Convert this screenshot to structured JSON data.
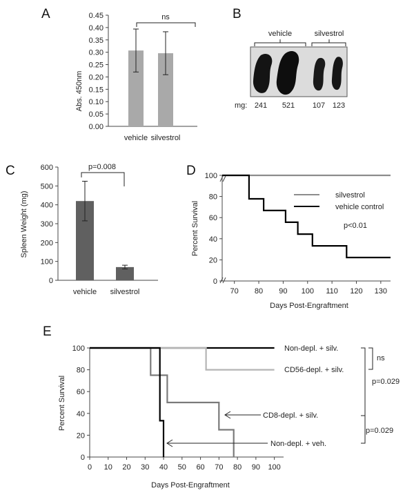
{
  "panels": {
    "A": {
      "letter": "A"
    },
    "B": {
      "letter": "B"
    },
    "C": {
      "letter": "C"
    },
    "D": {
      "letter": "D"
    },
    "E": {
      "letter": "E"
    }
  },
  "chart_data": [
    {
      "id": "A",
      "type": "bar",
      "categories": [
        "vehicle",
        "silvestrol"
      ],
      "values": [
        0.307,
        0.296
      ],
      "errors": [
        0.087,
        0.087
      ],
      "ylabel": "Abs. 450nm",
      "xlabel": "",
      "ylim": [
        0,
        0.45
      ],
      "yticks": [
        "0.00",
        "0.05",
        "0.10",
        "0.15",
        "0.20",
        "0.25",
        "0.30",
        "0.35",
        "0.40",
        "0.45"
      ],
      "bar_color": "#a9a9a9",
      "annotation": "ns"
    },
    {
      "id": "C",
      "type": "bar",
      "categories": [
        "vehicle",
        "silvestrol"
      ],
      "values": [
        420,
        70
      ],
      "errors": [
        105,
        10
      ],
      "ylabel": "Spleen Weight (mg)",
      "xlabel": "",
      "ylim": [
        0,
        600
      ],
      "yticks": [
        "0",
        "100",
        "200",
        "300",
        "400",
        "500",
        "600"
      ],
      "bar_color": "#606060",
      "annotation": "p=0.008"
    },
    {
      "id": "D",
      "type": "line",
      "ylabel": "Percent Survival",
      "xlabel": "Days Post-Engraftment",
      "xlim": [
        65,
        134
      ],
      "ylim": [
        0,
        100
      ],
      "xticks": [
        "70",
        "80",
        "90",
        "100",
        "110",
        "120",
        "130"
      ],
      "yticks": [
        "0",
        "20",
        "40",
        "60",
        "80",
        "100"
      ],
      "series": [
        {
          "name": "silvestrol",
          "color": "#8c8c8c",
          "x": [
            65,
            134
          ],
          "y": [
            100,
            100
          ]
        },
        {
          "name": "vehicle control",
          "color": "#000000",
          "x": [
            65,
            76,
            76,
            82,
            82,
            91,
            91,
            96,
            96,
            102,
            102,
            116,
            116,
            134
          ],
          "y": [
            100,
            100,
            77.8,
            77.8,
            66.7,
            66.7,
            55.6,
            55.6,
            44.4,
            44.4,
            33.3,
            33.3,
            22.2,
            22.2
          ]
        }
      ],
      "annotation": "p<0.01"
    },
    {
      "id": "E",
      "type": "line",
      "ylabel": "Percent Survival",
      "xlabel": "Days Post-Engraftment",
      "xlim": [
        0,
        105
      ],
      "ylim": [
        0,
        100
      ],
      "xticks": [
        "0",
        "10",
        "20",
        "30",
        "40",
        "50",
        "60",
        "70",
        "80",
        "90",
        "100"
      ],
      "yticks": [
        "0",
        "20",
        "40",
        "60",
        "80",
        "100"
      ],
      "series": [
        {
          "name": "Non-depl. + silv.",
          "color": "#000000",
          "x": [
            0,
            100
          ],
          "y": [
            100,
            100
          ]
        },
        {
          "name": "CD56-depl. + silv.",
          "color": "#b4b4b4",
          "x": [
            0,
            63,
            63,
            100
          ],
          "y": [
            100,
            100,
            80,
            80
          ]
        },
        {
          "name": "CD8-depl. + silv.",
          "color": "#7a7a7a",
          "x": [
            0,
            33,
            33,
            38,
            38,
            42,
            42,
            70,
            70,
            78,
            78
          ],
          "y": [
            100,
            100,
            75,
            75,
            75,
            75,
            50,
            50,
            25,
            25,
            0
          ]
        },
        {
          "name": "Non-depl.  + veh.",
          "color": "#000000",
          "x": [
            0,
            38,
            38,
            39,
            39,
            40,
            40
          ],
          "y": [
            100,
            100,
            33.3,
            33.3,
            33.3,
            33.3,
            0
          ]
        }
      ],
      "brackets": [
        {
          "label": "ns"
        },
        {
          "label": "p=0.029"
        },
        {
          "label": "p=0.029"
        }
      ]
    }
  ],
  "photo": {
    "group_labels": [
      "vehicle",
      "silvestrol"
    ],
    "mg_label": "mg:",
    "weights": [
      "241",
      "521",
      "107",
      "123"
    ]
  }
}
